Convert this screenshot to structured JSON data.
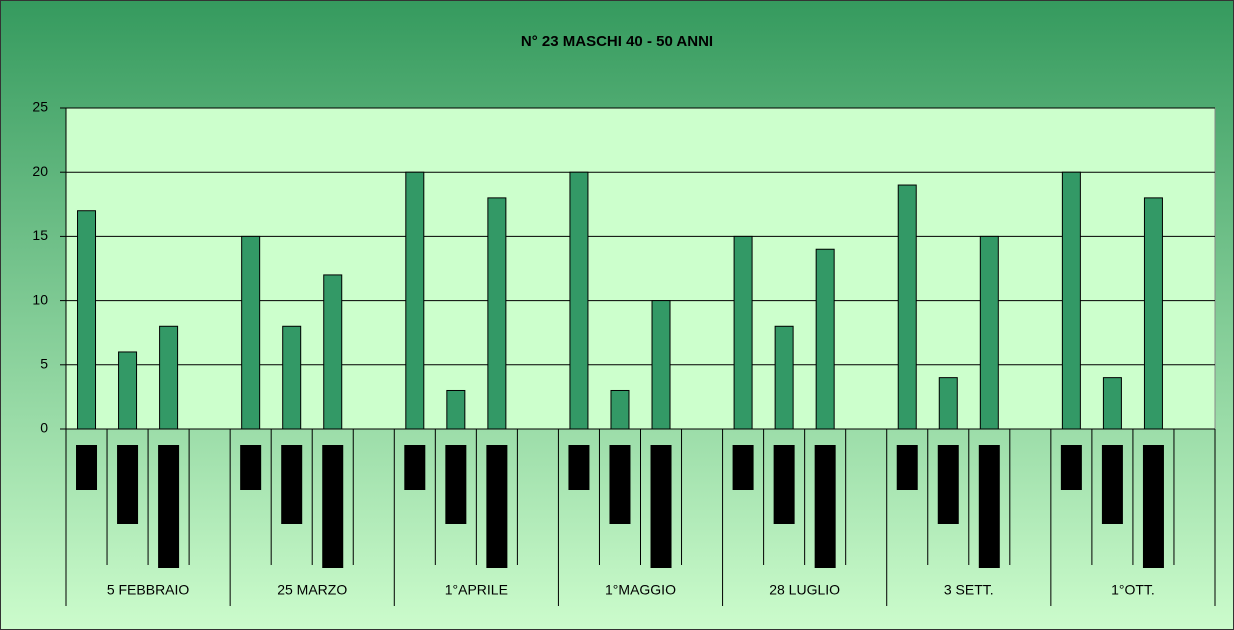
{
  "chart_data": {
    "type": "bar",
    "title": "N° 23 MASCHI 40 - 50 ANNI",
    "categories": [
      "5 FEBBRAIO",
      "25 MARZO",
      "1°APRILE",
      "1°MAGGIO",
      "28 LUGLIO",
      "3 SETT.",
      "1°OTT."
    ],
    "values": [
      [
        17,
        6,
        8
      ],
      [
        15,
        8,
        12
      ],
      [
        20,
        3,
        18
      ],
      [
        20,
        3,
        10
      ],
      [
        15,
        8,
        14
      ],
      [
        19,
        4,
        15
      ],
      [
        20,
        4,
        18
      ]
    ],
    "color": "#339966",
    "ylim": [
      0,
      25
    ],
    "yticks": [
      0,
      5,
      10,
      15,
      20,
      25
    ],
    "grid": true
  }
}
